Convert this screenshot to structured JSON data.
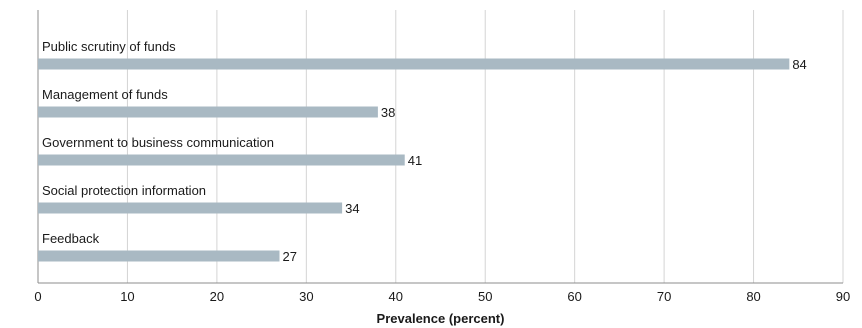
{
  "chart_data": {
    "type": "bar",
    "orientation": "horizontal",
    "categories": [
      "Public scrutiny of funds",
      "Management of funds",
      "Government to business communication",
      "Social protection information",
      "Feedback"
    ],
    "values": [
      84,
      38,
      41,
      34,
      27
    ],
    "xlabel": "Prevalence (percent)",
    "xlim": [
      0,
      90
    ],
    "xticks": [
      0,
      10,
      20,
      30,
      40,
      50,
      60,
      70,
      80,
      90
    ],
    "grid": "vertical",
    "colors": {
      "bar": "#a9b9c3",
      "grid": "#d4d4d4",
      "axis": "#8c8c8c",
      "text": "#1a1a1a"
    }
  }
}
